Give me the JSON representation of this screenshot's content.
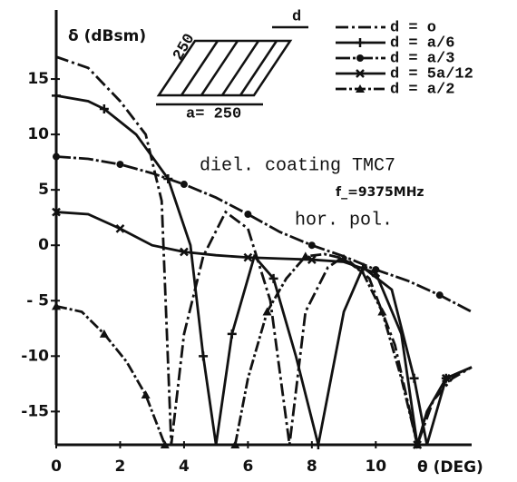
{
  "chart_data": {
    "type": "line",
    "y_label": "δ (dBsm)",
    "x_label": "θ (DEG)",
    "annotations": [
      "diel. coating TMC7",
      "f_=9375MHz",
      "hor. pol."
    ],
    "inset_labels": [
      "d",
      "250",
      "a= 250"
    ],
    "xlim": [
      0,
      13
    ],
    "ylim": [
      -18,
      20
    ],
    "xticks": [
      0,
      2,
      4,
      6,
      8,
      10
    ],
    "yticks": [
      15,
      10,
      5,
      0,
      {
        "value": -5,
        "label": "- 5"
      },
      -10,
      -15
    ],
    "grid": false,
    "legend": "upper right",
    "series": [
      {
        "name": "d = o",
        "color": "#111111",
        "marker": "none",
        "dash": "14 4 3 4",
        "x": [
          0,
          1,
          2,
          2.8,
          3.3,
          3.6,
          4,
          4.6,
          5.3,
          6,
          6.7,
          7.3,
          7.8,
          8.5,
          9,
          9.8,
          10.6,
          11.3,
          11.8,
          12.4,
          13
        ],
        "values": [
          17,
          16,
          13,
          10,
          4,
          -18,
          -8,
          -1,
          3,
          1.5,
          -5,
          -18,
          -6,
          -2,
          -1,
          -3,
          -9,
          -18,
          -14,
          -12,
          -11
        ]
      },
      {
        "name": "d = a/6",
        "color": "#111111",
        "marker": "plus",
        "dash": "none",
        "x": [
          0,
          1,
          1.5,
          2.5,
          3.5,
          4.2,
          4.6,
          5,
          5.5,
          6.2,
          6.8,
          7.5,
          8.2,
          9,
          9.6,
          10.5,
          11.2,
          11.6,
          12.2,
          13
        ],
        "values": [
          13.5,
          13,
          12.3,
          10,
          6,
          0,
          -10,
          -18,
          -8,
          -1,
          -3,
          -10,
          -18,
          -6,
          -2,
          -4,
          -12,
          -18,
          -12,
          -11
        ]
      },
      {
        "name": "d = a/3",
        "color": "#111111",
        "marker": "dot",
        "dash": "16 3 3 3",
        "x": [
          0,
          1,
          2,
          3,
          4,
          5,
          6,
          7,
          8,
          9,
          10,
          11,
          12,
          13
        ],
        "values": [
          8,
          7.8,
          7.3,
          6.5,
          5.5,
          4.3,
          2.8,
          1.2,
          0,
          -1,
          -2.2,
          -3.2,
          -4.5,
          -6
        ]
      },
      {
        "name": "d = 5a/12",
        "color": "#111111",
        "marker": "x",
        "dash": "none",
        "x": [
          0,
          1,
          2,
          3,
          4,
          5,
          6,
          7,
          8,
          9,
          10,
          10.8,
          11.3,
          11.6,
          12.2,
          13
        ],
        "values": [
          3,
          2.8,
          1.5,
          0,
          -0.6,
          -0.9,
          -1.1,
          -1.2,
          -1.3,
          -1.5,
          -2.5,
          -8,
          -18,
          -15,
          -12,
          -11
        ]
      },
      {
        "name": "d = a/2",
        "color": "#111111",
        "marker": "triangle",
        "dash": "12 3 3 3",
        "x": [
          0,
          0.8,
          1.5,
          2.2,
          2.8,
          3.2,
          3.4,
          4.5,
          5.6,
          6,
          6.6,
          7.2,
          7.8,
          8.4,
          9,
          9.6,
          10.2,
          10.8,
          11.3
        ],
        "values": [
          -5.5,
          -6,
          -8,
          -10.5,
          -13.5,
          -16.5,
          -18,
          null,
          -18,
          -12,
          -6,
          -3,
          -1,
          -0.8,
          -1.2,
          -2.5,
          -6,
          -12,
          -18
        ]
      }
    ]
  }
}
